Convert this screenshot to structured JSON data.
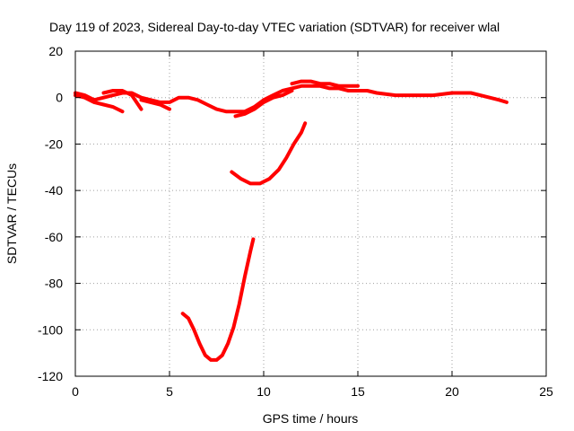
{
  "chart_data": {
    "type": "line",
    "title": "Day 119 of 2023, Sidereal Day-to-day VTEC variation (SDTVAR) for receiver wlal",
    "xlabel": "GPS time / hours",
    "ylabel": "SDTVAR / TECUs",
    "xlim": [
      0,
      25
    ],
    "ylim": [
      -120,
      20
    ],
    "xticks": [
      0,
      5,
      10,
      15,
      20,
      25
    ],
    "yticks": [
      -120,
      -100,
      -80,
      -60,
      -40,
      -20,
      0,
      20
    ],
    "grid": true,
    "series_color": "#ff0000",
    "series": [
      {
        "name": "arc-main",
        "points": [
          [
            0.0,
            2
          ],
          [
            0.5,
            1
          ],
          [
            1.0,
            -1
          ],
          [
            1.5,
            0
          ],
          [
            2.0,
            1
          ],
          [
            2.5,
            2
          ],
          [
            3.0,
            2
          ],
          [
            3.5,
            0
          ],
          [
            4.0,
            -1
          ],
          [
            4.5,
            -2
          ],
          [
            5.0,
            -2
          ],
          [
            5.5,
            0
          ],
          [
            6.0,
            0
          ],
          [
            6.5,
            -1
          ],
          [
            7.0,
            -3
          ],
          [
            7.5,
            -5
          ],
          [
            8.0,
            -6
          ],
          [
            8.5,
            -6
          ],
          [
            9.0,
            -6
          ],
          [
            9.5,
            -4
          ],
          [
            10.0,
            -1
          ],
          [
            10.5,
            1
          ],
          [
            11.0,
            3
          ],
          [
            11.5,
            4
          ],
          [
            12.0,
            5
          ],
          [
            12.5,
            5
          ],
          [
            13.0,
            5
          ],
          [
            13.5,
            4
          ],
          [
            14.0,
            4
          ],
          [
            14.5,
            3
          ],
          [
            15.0,
            3
          ],
          [
            15.5,
            3
          ],
          [
            16.0,
            2
          ],
          [
            17.0,
            1
          ],
          [
            18.0,
            1
          ],
          [
            19.0,
            1
          ],
          [
            20.0,
            2
          ],
          [
            20.5,
            2
          ],
          [
            21.0,
            2
          ],
          [
            21.5,
            1
          ],
          [
            22.0,
            0
          ],
          [
            22.5,
            -1
          ],
          [
            22.9,
            -2
          ]
        ]
      },
      {
        "name": "arc-2",
        "points": [
          [
            0.0,
            1
          ],
          [
            0.5,
            0
          ],
          [
            1.0,
            -2
          ],
          [
            1.5,
            -3
          ],
          [
            2.0,
            -4
          ],
          [
            2.5,
            -6
          ]
        ]
      },
      {
        "name": "arc-3",
        "points": [
          [
            1.5,
            2
          ],
          [
            2.0,
            3
          ],
          [
            2.5,
            3
          ],
          [
            3.0,
            1
          ],
          [
            3.5,
            -5
          ]
        ]
      },
      {
        "name": "arc-4",
        "points": [
          [
            3.5,
            -1
          ],
          [
            4.0,
            -2
          ],
          [
            4.5,
            -3
          ],
          [
            5.0,
            -5
          ]
        ]
      },
      {
        "name": "arc-5",
        "points": [
          [
            8.5,
            -8
          ],
          [
            9.0,
            -7
          ],
          [
            9.5,
            -5
          ],
          [
            10.0,
            -2
          ],
          [
            10.5,
            0
          ],
          [
            11.0,
            1
          ],
          [
            11.5,
            3
          ]
        ]
      },
      {
        "name": "arc-6",
        "points": [
          [
            11.5,
            6
          ],
          [
            12.0,
            7
          ],
          [
            12.5,
            7
          ],
          [
            13.0,
            6
          ],
          [
            13.5,
            6
          ],
          [
            14.0,
            5
          ],
          [
            14.5,
            5
          ],
          [
            15.0,
            5
          ]
        ]
      },
      {
        "name": "arc-7",
        "points": [
          [
            8.3,
            -32
          ],
          [
            8.8,
            -35
          ],
          [
            9.3,
            -37
          ],
          [
            9.8,
            -37
          ],
          [
            10.3,
            -35
          ],
          [
            10.8,
            -31
          ],
          [
            11.2,
            -26
          ],
          [
            11.6,
            -20
          ],
          [
            12.0,
            -15
          ],
          [
            12.2,
            -11
          ]
        ]
      },
      {
        "name": "arc-8",
        "points": [
          [
            5.7,
            -93
          ],
          [
            6.0,
            -95
          ],
          [
            6.3,
            -100
          ],
          [
            6.6,
            -106
          ],
          [
            6.9,
            -111
          ],
          [
            7.2,
            -113
          ],
          [
            7.5,
            -113
          ],
          [
            7.8,
            -111
          ],
          [
            8.1,
            -106
          ],
          [
            8.4,
            -99
          ],
          [
            8.7,
            -89
          ],
          [
            9.0,
            -77
          ],
          [
            9.3,
            -66
          ],
          [
            9.45,
            -61
          ]
        ]
      }
    ]
  }
}
